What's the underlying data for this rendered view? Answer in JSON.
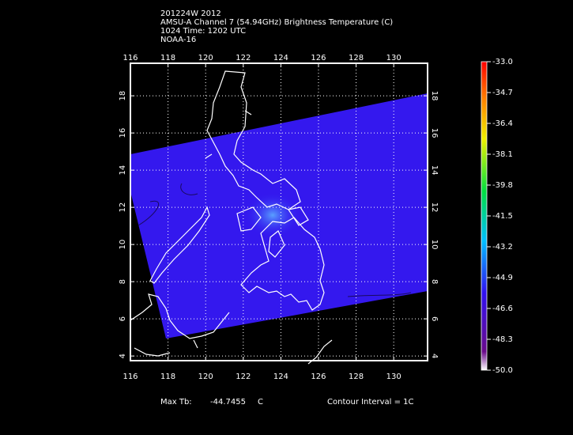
{
  "header": {
    "lines": [
      "201224W 2012",
      "AMSU-A Channel 7 (54.94GHz) Brightness Temperature (C)",
      "1024 Time: 1202 UTC",
      "NOAA-16"
    ]
  },
  "map": {
    "lonlim": [
      116,
      131.8
    ],
    "latlim": [
      3.75,
      19.75
    ],
    "lonticks": [
      116,
      118,
      120,
      122,
      124,
      126,
      128,
      130
    ],
    "latticks": [
      4,
      6,
      8,
      10,
      12,
      14,
      16,
      18
    ],
    "grid": true
  },
  "colorbar": {
    "lim": [
      -50,
      -33
    ],
    "ticks": [
      {
        "value": -33,
        "label": "-33.0"
      },
      {
        "value": -34.7,
        "label": "-34.7"
      },
      {
        "value": -36.4,
        "label": "-36.4"
      },
      {
        "value": -38.1,
        "label": "-38.1"
      },
      {
        "value": -39.8,
        "label": "-39.8"
      },
      {
        "value": -41.5,
        "label": "-41.5"
      },
      {
        "value": -43.2,
        "label": "-43.2"
      },
      {
        "value": -44.9,
        "label": "-44.9"
      },
      {
        "value": -46.6,
        "label": "-46.6"
      },
      {
        "value": -48.3,
        "label": "-48.3"
      },
      {
        "value": -50,
        "label": "-50.0"
      }
    ]
  },
  "footer": {
    "max_label": "Max Tb:",
    "max_value": "-44.7455",
    "max_unit": "C",
    "contour": "Contour Interval = 1C"
  }
}
